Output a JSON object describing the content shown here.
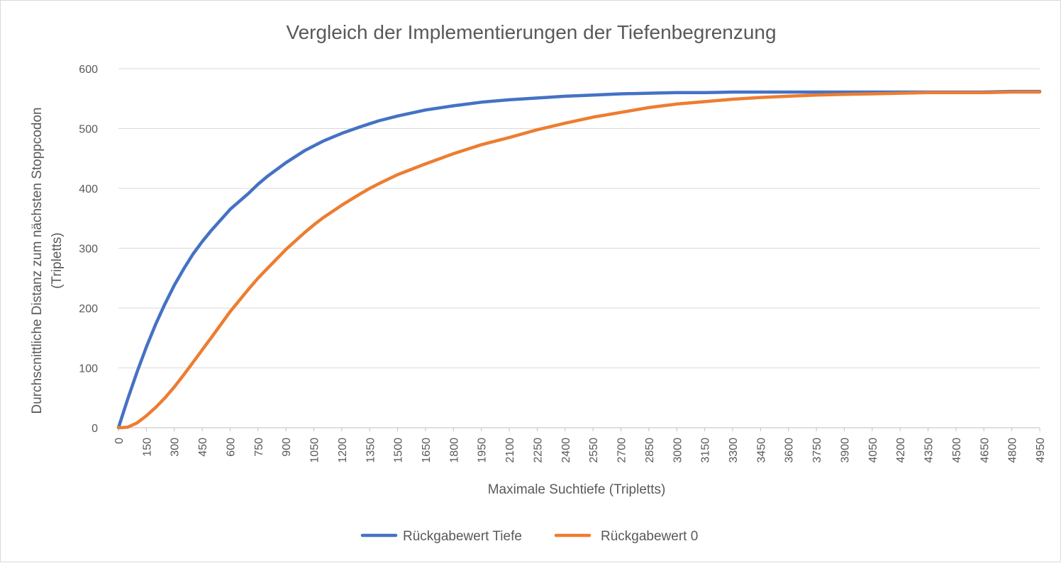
{
  "chart_data": {
    "type": "line",
    "title": "Vergleich der Implementierungen der Tiefenbegrenzung",
    "xlabel": "Maximale Suchtiefe (Tripletts)",
    "ylabel": [
      "Durchscnittliche Distanz zum nächsten Stoppcodon",
      "(Tripletts)"
    ],
    "ylim": [
      0,
      600
    ],
    "xlim": [
      0,
      4950
    ],
    "y_ticks": [
      "0",
      "100",
      "200",
      "300",
      "400",
      "500",
      "600"
    ],
    "x_ticks": [
      "0",
      "150",
      "300",
      "450",
      "600",
      "750",
      "900",
      "1050",
      "1200",
      "1350",
      "1500",
      "1650",
      "1800",
      "1950",
      "2100",
      "2250",
      "2400",
      "2550",
      "2700",
      "2850",
      "3000",
      "3150",
      "3300",
      "3450",
      "3600",
      "3750",
      "3900",
      "4050",
      "4200",
      "4350",
      "4500",
      "4650",
      "4800",
      "4950"
    ],
    "grid": true,
    "legend_position": "bottom",
    "series": [
      {
        "name": "Rückgabewert Tiefe",
        "color": "#4472C4",
        "x": [
          0,
          50,
          100,
          150,
          200,
          250,
          300,
          350,
          400,
          450,
          500,
          600,
          700,
          750,
          800,
          900,
          1000,
          1050,
          1100,
          1200,
          1300,
          1350,
          1400,
          1500,
          1650,
          1800,
          1950,
          2100,
          2250,
          2400,
          2550,
          2700,
          2850,
          3000,
          3150,
          3300,
          3450,
          3600,
          3750,
          3900,
          4050,
          4200,
          4350,
          4500,
          4650,
          4800,
          4950
        ],
        "values": [
          0,
          48,
          93,
          135,
          173,
          207,
          238,
          265,
          290,
          311,
          330,
          365,
          392,
          407,
          420,
          443,
          463,
          471,
          479,
          492,
          503,
          508,
          513,
          521,
          531,
          538,
          544,
          548,
          551,
          554,
          556,
          558,
          559,
          560,
          560,
          561,
          561,
          561,
          561,
          561,
          561,
          561,
          561,
          561,
          561,
          562,
          562
        ]
      },
      {
        "name": "Rückgabewert 0",
        "color": "#ED7D31",
        "x": [
          0,
          50,
          100,
          150,
          200,
          250,
          300,
          350,
          400,
          450,
          500,
          600,
          700,
          750,
          800,
          900,
          1000,
          1050,
          1100,
          1200,
          1300,
          1350,
          1400,
          1500,
          1650,
          1800,
          1950,
          2100,
          2250,
          2400,
          2550,
          2700,
          2850,
          3000,
          3150,
          3300,
          3450,
          3600,
          3750,
          3900,
          4050,
          4200,
          4350,
          4500,
          4650,
          4800,
          4950
        ],
        "values": [
          0,
          1,
          8,
          20,
          34,
          50,
          68,
          88,
          109,
          130,
          151,
          194,
          232,
          250,
          266,
          298,
          326,
          339,
          351,
          372,
          391,
          400,
          408,
          423,
          441,
          458,
          473,
          485,
          498,
          509,
          519,
          527,
          535,
          541,
          545,
          549,
          552,
          554,
          556,
          557,
          558,
          559,
          560,
          560,
          560,
          561,
          561
        ]
      }
    ]
  }
}
